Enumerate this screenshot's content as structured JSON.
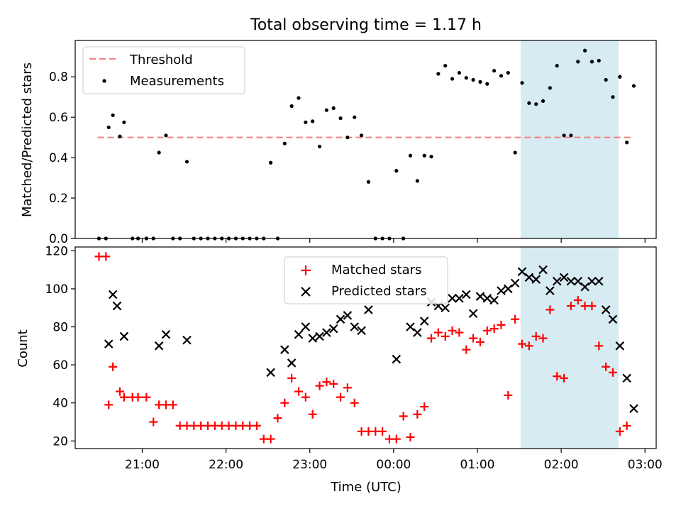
{
  "title": "Total observing time = 1.17 h",
  "colors": {
    "threshold": "#f08080",
    "measurement": "#000000",
    "matched": "#ff0000",
    "predicted": "#000000",
    "span": "#add8e6"
  },
  "chart_data": [
    {
      "type": "scatter",
      "title": "Total observing time = 1.17 h",
      "xlabel": "",
      "ylabel": "Matched/Predicted stars",
      "xlim": [
        "20:12",
        "03:08"
      ],
      "ylim": [
        0,
        0.98
      ],
      "y_ticks": [
        "0.0",
        "0.2",
        "0.4",
        "0.6",
        "0.8"
      ],
      "y_tick_values": [
        0,
        0.2,
        0.4,
        0.6,
        0.8
      ],
      "highlight_span": [
        "01:31",
        "02:41"
      ],
      "legend_position": "upper left",
      "threshold": {
        "name": "Threshold",
        "value": 0.5,
        "x_range": [
          "20:28",
          "02:51"
        ]
      },
      "series": [
        {
          "name": "Measurements",
          "marker": "dot",
          "points": [
            [
              "20:29",
              0
            ],
            [
              "20:34",
              0
            ],
            [
              "20:36",
              0.55
            ],
            [
              "20:39",
              0.61
            ],
            [
              "20:44",
              0.505
            ],
            [
              "20:47",
              0.575
            ],
            [
              "20:53",
              0
            ],
            [
              "20:57",
              0
            ],
            [
              "21:03",
              0
            ],
            [
              "21:08",
              0
            ],
            [
              "21:12",
              0.425
            ],
            [
              "21:17",
              0.51
            ],
            [
              "21:22",
              0
            ],
            [
              "21:27",
              0
            ],
            [
              "21:32",
              0.38
            ],
            [
              "21:37",
              0
            ],
            [
              "21:42",
              0
            ],
            [
              "21:47",
              0
            ],
            [
              "21:52",
              0
            ],
            [
              "21:57",
              0
            ],
            [
              "22:02",
              0
            ],
            [
              "22:07",
              0
            ],
            [
              "22:12",
              0
            ],
            [
              "22:17",
              0
            ],
            [
              "22:22",
              0
            ],
            [
              "22:27",
              0
            ],
            [
              "22:32",
              0.375
            ],
            [
              "22:37",
              0
            ],
            [
              "22:42",
              0.47
            ],
            [
              "22:47",
              0.655
            ],
            [
              "22:52",
              0.695
            ],
            [
              "22:57",
              0.575
            ],
            [
              "23:02",
              0.58
            ],
            [
              "23:07",
              0.455
            ],
            [
              "23:12",
              0.635
            ],
            [
              "23:17",
              0.645
            ],
            [
              "23:22",
              0.595
            ],
            [
              "23:27",
              0.5
            ],
            [
              "23:32",
              0.6
            ],
            [
              "23:37",
              0.51
            ],
            [
              "23:42",
              0.28
            ],
            [
              "23:47",
              0
            ],
            [
              "23:52",
              0
            ],
            [
              "23:57",
              0
            ],
            [
              "00:02",
              0.335
            ],
            [
              "00:07",
              0
            ],
            [
              "00:12",
              0.41
            ],
            [
              "00:17",
              0.285
            ],
            [
              "00:22",
              0.41
            ],
            [
              "00:27",
              0.405
            ],
            [
              "00:32",
              0.815
            ],
            [
              "00:37",
              0.855
            ],
            [
              "00:42",
              0.79
            ],
            [
              "00:47",
              0.82
            ],
            [
              "00:52",
              0.795
            ],
            [
              "00:57",
              0.785
            ],
            [
              "01:02",
              0.775
            ],
            [
              "01:07",
              0.765
            ],
            [
              "01:12",
              0.83
            ],
            [
              "01:17",
              0.805
            ],
            [
              "01:22",
              0.82
            ],
            [
              "01:27",
              0.425
            ],
            [
              "01:32",
              0.77
            ],
            [
              "01:37",
              0.67
            ],
            [
              "01:42",
              0.665
            ],
            [
              "01:47",
              0.68
            ],
            [
              "01:52",
              0.745
            ],
            [
              "01:57",
              0.855
            ],
            [
              "02:02",
              0.51
            ],
            [
              "02:07",
              0.51
            ],
            [
              "02:12",
              0.875
            ],
            [
              "02:17",
              0.93
            ],
            [
              "02:22",
              0.875
            ],
            [
              "02:27",
              0.88
            ],
            [
              "02:32",
              0.785
            ],
            [
              "02:37",
              0.7
            ],
            [
              "02:42",
              0.8
            ],
            [
              "02:47",
              0.475
            ],
            [
              "02:52",
              0.755
            ]
          ]
        }
      ]
    },
    {
      "type": "scatter",
      "title": "",
      "xlabel": "Time (UTC)",
      "ylabel": "Count",
      "xlim": [
        "20:12",
        "03:08"
      ],
      "ylim": [
        16,
        122
      ],
      "x_ticks": [
        "21:00",
        "22:00",
        "23:00",
        "00:00",
        "01:00",
        "02:00",
        "03:00"
      ],
      "y_ticks": [
        "20",
        "40",
        "60",
        "80",
        "100",
        "120"
      ],
      "y_tick_values": [
        20,
        40,
        60,
        80,
        100,
        120
      ],
      "highlight_span": [
        "01:31",
        "02:41"
      ],
      "legend_position": "upper center",
      "series": [
        {
          "name": "Matched stars",
          "marker": "plus",
          "points": [
            [
              "20:29",
              117
            ],
            [
              "20:34",
              117
            ],
            [
              "20:36",
              39
            ],
            [
              "20:39",
              59
            ],
            [
              "20:44",
              46
            ],
            [
              "20:47",
              43
            ],
            [
              "20:53",
              43
            ],
            [
              "20:57",
              43
            ],
            [
              "21:03",
              43
            ],
            [
              "21:08",
              30
            ],
            [
              "21:12",
              39
            ],
            [
              "21:17",
              39
            ],
            [
              "21:22",
              39
            ],
            [
              "21:27",
              28
            ],
            [
              "21:32",
              28
            ],
            [
              "21:37",
              28
            ],
            [
              "21:42",
              28
            ],
            [
              "21:47",
              28
            ],
            [
              "21:52",
              28
            ],
            [
              "21:57",
              28
            ],
            [
              "22:02",
              28
            ],
            [
              "22:07",
              28
            ],
            [
              "22:12",
              28
            ],
            [
              "22:17",
              28
            ],
            [
              "22:22",
              28
            ],
            [
              "22:27",
              21
            ],
            [
              "22:32",
              21
            ],
            [
              "22:37",
              32
            ],
            [
              "22:42",
              40
            ],
            [
              "22:47",
              53
            ],
            [
              "22:52",
              46
            ],
            [
              "22:57",
              43
            ],
            [
              "23:02",
              34
            ],
            [
              "23:07",
              49
            ],
            [
              "23:12",
              51
            ],
            [
              "23:17",
              50
            ],
            [
              "23:22",
              43
            ],
            [
              "23:27",
              48
            ],
            [
              "23:32",
              40
            ],
            [
              "23:37",
              25
            ],
            [
              "23:42",
              25
            ],
            [
              "23:47",
              25
            ],
            [
              "23:52",
              25
            ],
            [
              "23:57",
              21
            ],
            [
              "00:02",
              21
            ],
            [
              "00:07",
              33
            ],
            [
              "00:12",
              22
            ],
            [
              "00:17",
              34
            ],
            [
              "00:22",
              38
            ],
            [
              "00:27",
              74
            ],
            [
              "00:32",
              77
            ],
            [
              "00:37",
              75
            ],
            [
              "00:42",
              78
            ],
            [
              "00:47",
              77
            ],
            [
              "00:52",
              68
            ],
            [
              "00:57",
              74
            ],
            [
              "01:02",
              72
            ],
            [
              "01:07",
              78
            ],
            [
              "01:12",
              79
            ],
            [
              "01:17",
              81
            ],
            [
              "01:22",
              44
            ],
            [
              "01:27",
              84
            ],
            [
              "01:32",
              71
            ],
            [
              "01:37",
              70
            ],
            [
              "01:42",
              75
            ],
            [
              "01:47",
              74
            ],
            [
              "01:52",
              89
            ],
            [
              "01:57",
              54
            ],
            [
              "02:02",
              53
            ],
            [
              "02:07",
              91
            ],
            [
              "02:12",
              94
            ],
            [
              "02:17",
              91
            ],
            [
              "02:22",
              91
            ],
            [
              "02:27",
              70
            ],
            [
              "02:32",
              59
            ],
            [
              "02:37",
              56
            ],
            [
              "02:42",
              25
            ],
            [
              "02:47",
              28
            ]
          ]
        },
        {
          "name": "Predicted stars",
          "marker": "x",
          "points": [
            [
              "20:36",
              71
            ],
            [
              "20:39",
              97
            ],
            [
              "20:42",
              91
            ],
            [
              "20:47",
              75
            ],
            [
              "21:12",
              70
            ],
            [
              "21:17",
              76
            ],
            [
              "21:32",
              73
            ],
            [
              "22:32",
              56
            ],
            [
              "22:42",
              68
            ],
            [
              "22:47",
              61
            ],
            [
              "22:52",
              76
            ],
            [
              "22:57",
              80
            ],
            [
              "23:02",
              74
            ],
            [
              "23:07",
              75
            ],
            [
              "23:12",
              77
            ],
            [
              "23:17",
              79
            ],
            [
              "23:22",
              84
            ],
            [
              "23:27",
              86
            ],
            [
              "23:32",
              80
            ],
            [
              "23:37",
              78
            ],
            [
              "23:42",
              89
            ],
            [
              "00:02",
              63
            ],
            [
              "00:12",
              80
            ],
            [
              "00:17",
              77
            ],
            [
              "00:22",
              83
            ],
            [
              "00:27",
              93
            ],
            [
              "00:32",
              91
            ],
            [
              "00:37",
              90
            ],
            [
              "00:42",
              95
            ],
            [
              "00:47",
              95
            ],
            [
              "00:52",
              97
            ],
            [
              "00:57",
              87
            ],
            [
              "01:02",
              96
            ],
            [
              "01:07",
              95
            ],
            [
              "01:12",
              94
            ],
            [
              "01:17",
              99
            ],
            [
              "01:22",
              100
            ],
            [
              "01:27",
              103
            ],
            [
              "01:32",
              109
            ],
            [
              "01:37",
              106
            ],
            [
              "01:42",
              105
            ],
            [
              "01:47",
              110
            ],
            [
              "01:52",
              99
            ],
            [
              "01:57",
              104
            ],
            [
              "02:02",
              106
            ],
            [
              "02:07",
              104
            ],
            [
              "02:12",
              104
            ],
            [
              "02:17",
              101
            ],
            [
              "02:22",
              104
            ],
            [
              "02:27",
              104
            ],
            [
              "02:32",
              89
            ],
            [
              "02:37",
              84
            ],
            [
              "02:42",
              70
            ],
            [
              "02:47",
              53
            ],
            [
              "02:52",
              37
            ]
          ]
        }
      ]
    }
  ]
}
